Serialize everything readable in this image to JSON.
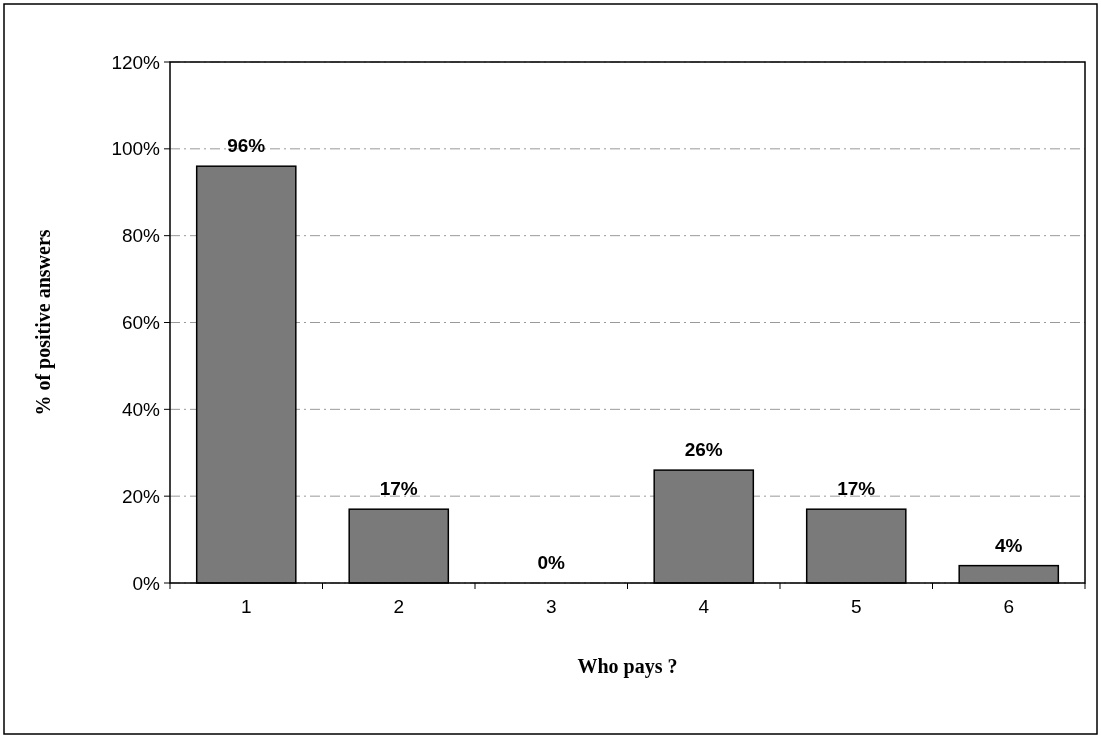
{
  "chart_data": {
    "type": "bar",
    "xlabel": "Who pays ?",
    "ylabel": "% of positive answers",
    "categories": [
      "1",
      "2",
      "3",
      "4",
      "5",
      "6"
    ],
    "values": [
      96,
      17,
      0,
      26,
      17,
      4
    ],
    "value_labels": [
      "96%",
      "17%",
      "0%",
      "26%",
      "17%",
      "4%"
    ],
    "color": "#7a7a7a",
    "ylim": [
      0,
      120
    ],
    "yticks": [
      {
        "value": 0,
        "label": "0%"
      },
      {
        "value": 20,
        "label": "20%"
      },
      {
        "value": 40,
        "label": "40%"
      },
      {
        "value": 60,
        "label": "60%"
      },
      {
        "value": 80,
        "label": "80%"
      },
      {
        "value": 100,
        "label": "100%"
      },
      {
        "value": 120,
        "label": "120%"
      }
    ],
    "grid": "y",
    "line_style": "dashed"
  }
}
